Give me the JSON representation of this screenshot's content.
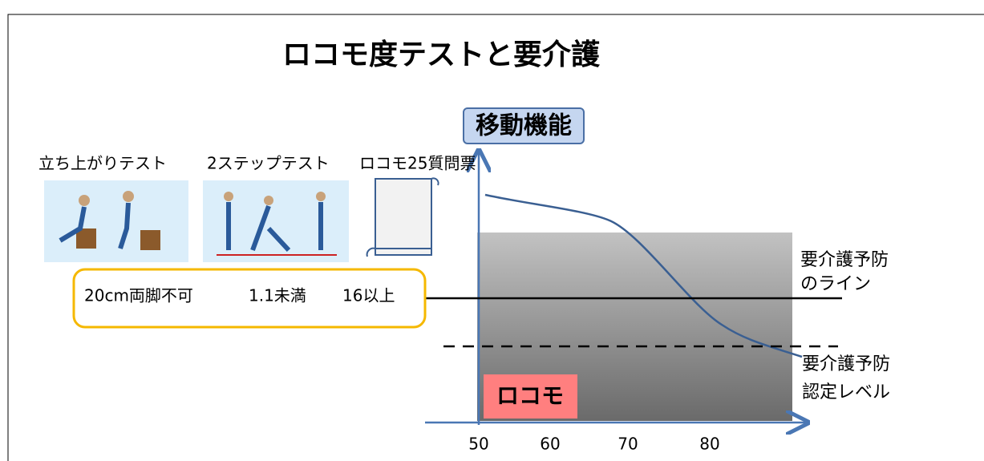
{
  "title": "ロコモ度テストと要介護",
  "y_axis_label": "移動機能",
  "tests": [
    {
      "name": "立ち上がりテスト",
      "criterion": "20cm両脚不可"
    },
    {
      "name": "2ステップテスト",
      "criterion": "1.1未満"
    },
    {
      "name": "ロコモ25質問票",
      "criterion": "16以上"
    }
  ],
  "x_ticks": [
    "50",
    "60",
    "70",
    "80"
  ],
  "prevention_line_label": [
    "要介護予防",
    "のライン"
  ],
  "certification_level_label": [
    "要介護予防",
    "認定レベル"
  ],
  "locomo_label": "ロコモ"
}
